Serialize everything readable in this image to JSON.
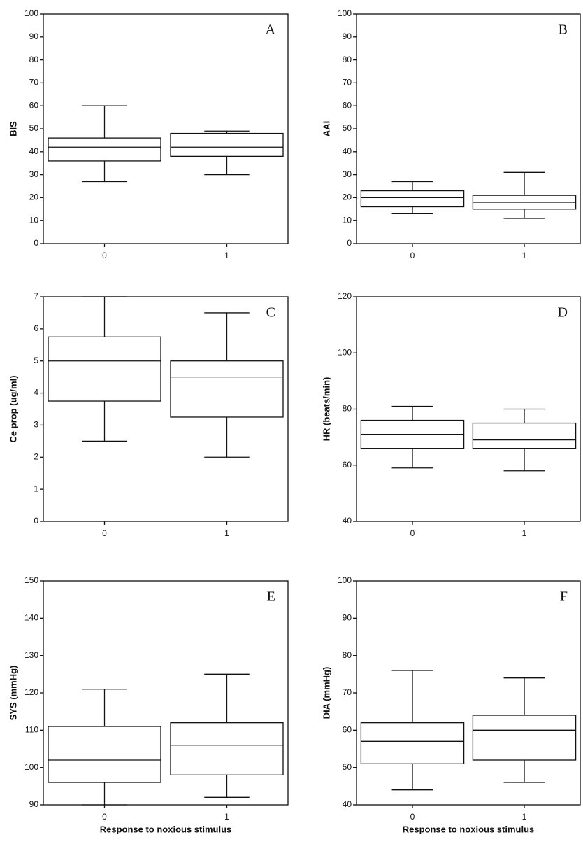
{
  "chart_data": [
    {
      "type": "box",
      "annotation": "A",
      "ylabel": "BIS",
      "categories": [
        "0",
        "1"
      ],
      "boxes": [
        {
          "min": 27,
          "q1": 36,
          "median": 42,
          "q3": 46,
          "max": 60
        },
        {
          "min": 30,
          "q1": 38,
          "median": 42,
          "q3": 48,
          "max": 49
        }
      ],
      "ylim": [
        0,
        100
      ],
      "yticks": [
        0,
        10,
        20,
        30,
        40,
        50,
        60,
        70,
        80,
        90,
        100
      ]
    },
    {
      "type": "box",
      "annotation": "B",
      "ylabel": "AAI",
      "categories": [
        "0",
        "1"
      ],
      "boxes": [
        {
          "min": 13,
          "q1": 16,
          "median": 20,
          "q3": 23,
          "max": 27
        },
        {
          "min": 11,
          "q1": 15,
          "median": 18,
          "q3": 21,
          "max": 31
        }
      ],
      "ylim": [
        0,
        100
      ],
      "yticks": [
        0,
        10,
        20,
        30,
        40,
        50,
        60,
        70,
        80,
        90,
        100
      ]
    },
    {
      "type": "box",
      "annotation": "C",
      "ylabel": "Ce prop (ug/ml)",
      "categories": [
        "0",
        "1"
      ],
      "boxes": [
        {
          "min": 2.5,
          "q1": 3.75,
          "median": 5,
          "q3": 5.75,
          "max": 7
        },
        {
          "min": 2,
          "q1": 3.25,
          "median": 4.5,
          "q3": 5,
          "max": 6.5
        }
      ],
      "ylim": [
        0,
        7
      ],
      "yticks": [
        0,
        1,
        2,
        3,
        4,
        5,
        6,
        7
      ]
    },
    {
      "type": "box",
      "annotation": "D",
      "ylabel": "HR (beats/min)",
      "categories": [
        "0",
        "1"
      ],
      "boxes": [
        {
          "min": 59,
          "q1": 66,
          "median": 71,
          "q3": 76,
          "max": 81
        },
        {
          "min": 58,
          "q1": 66,
          "median": 69,
          "q3": 75,
          "max": 80
        }
      ],
      "ylim": [
        40,
        120
      ],
      "yticks": [
        40,
        60,
        80,
        100,
        120
      ]
    },
    {
      "type": "box",
      "annotation": "E",
      "ylabel": "SYS (mmHg)",
      "xlabel": "Response to noxious stimulus",
      "categories": [
        "0",
        "1"
      ],
      "boxes": [
        {
          "min": 90,
          "q1": 96,
          "median": 102,
          "q3": 111,
          "max": 121
        },
        {
          "min": 92,
          "q1": 98,
          "median": 106,
          "q3": 112,
          "max": 125
        }
      ],
      "ylim": [
        90,
        150
      ],
      "yticks": [
        90,
        100,
        110,
        120,
        130,
        140,
        150
      ]
    },
    {
      "type": "box",
      "annotation": "F",
      "ylabel": "DIA (mmHg)",
      "xlabel": "Response to noxious stimulus",
      "categories": [
        "0",
        "1"
      ],
      "boxes": [
        {
          "min": 44,
          "q1": 51,
          "median": 57,
          "q3": 62,
          "max": 76
        },
        {
          "min": 46,
          "q1": 52,
          "median": 60,
          "q3": 64,
          "max": 74
        }
      ],
      "ylim": [
        40,
        100
      ],
      "yticks": [
        40,
        50,
        60,
        70,
        80,
        90,
        100
      ]
    }
  ]
}
